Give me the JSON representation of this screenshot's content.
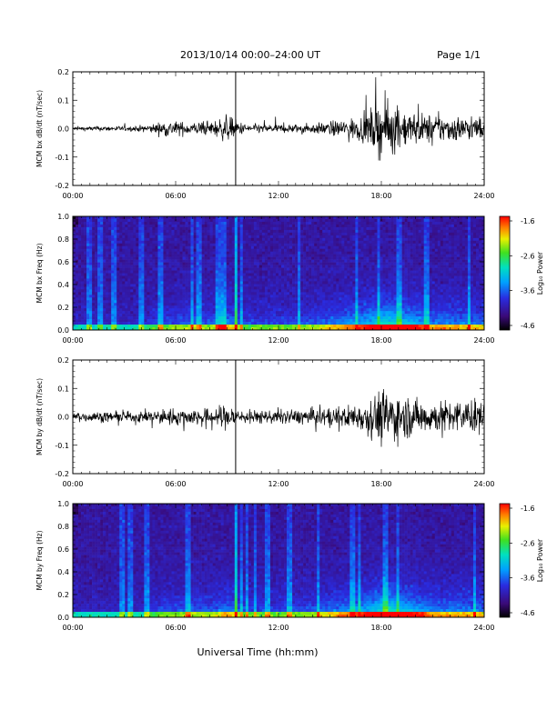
{
  "header": {
    "title": "2013/10/14  00:00–24:00 UT",
    "page": "Page 1/1"
  },
  "xlabel_common": "Universal Time (hh:mm)",
  "colorbar_ticks": [
    "-1.6",
    "-2.6",
    "-3.6",
    "-4.6"
  ],
  "colorbar_label": "Log₁₀ Power",
  "chart_data": [
    {
      "type": "line",
      "ylabel": "MCM bx dB/dt (nT/sec)",
      "xlim": [
        0,
        24
      ],
      "ylim": [
        -0.2,
        0.2
      ],
      "xticks": [
        "00:00",
        "06:00",
        "12:00",
        "18:00",
        "24:00"
      ],
      "yticks": [
        "0.2",
        "0.1",
        "0.0",
        "-0.1",
        "-0.2"
      ],
      "spike_hour": 9.5,
      "envelope": {
        "hour": [
          0,
          2,
          3.5,
          4.5,
          5.5,
          6.5,
          8,
          9,
          10,
          12,
          14,
          15.5,
          17,
          17.8,
          18.4,
          19,
          20.5,
          22,
          24
        ],
        "amplitude": [
          0.012,
          0.015,
          0.015,
          0.025,
          0.05,
          0.04,
          0.04,
          0.08,
          0.03,
          0.025,
          0.03,
          0.05,
          0.08,
          0.16,
          0.18,
          0.12,
          0.09,
          0.08,
          0.07
        ]
      }
    },
    {
      "type": "heatmap",
      "ylabel": "MCM bx Freq (Hz)",
      "xlim": [
        0,
        24
      ],
      "ylim": [
        0.0,
        1.0
      ],
      "zlim": [
        -4.6,
        -1.6
      ],
      "xticks": [
        "00:00",
        "06:00",
        "12:00",
        "18:00",
        "24:00"
      ],
      "yticks": [
        "1.0",
        "0.8",
        "0.6",
        "0.4",
        "0.2",
        "0.0"
      ]
    },
    {
      "type": "line",
      "ylabel": "MCM by dB/dt (nT/sec)",
      "xlim": [
        0,
        24
      ],
      "ylim": [
        -0.2,
        0.2
      ],
      "xticks": [
        "00:00",
        "06:00",
        "12:00",
        "18:00",
        "24:00"
      ],
      "yticks": [
        "0.2",
        "0.1",
        "0.0",
        "-0.1",
        "-0.2"
      ],
      "spike_hour": 9.5,
      "envelope": {
        "hour": [
          0,
          2,
          3.5,
          4.5,
          5.5,
          6.5,
          8,
          9,
          10,
          12,
          14,
          15.5,
          17,
          17.8,
          18.4,
          19,
          20.5,
          22,
          24
        ],
        "amplitude": [
          0.03,
          0.03,
          0.03,
          0.04,
          0.05,
          0.05,
          0.05,
          0.08,
          0.04,
          0.04,
          0.05,
          0.06,
          0.09,
          0.16,
          0.18,
          0.14,
          0.1,
          0.1,
          0.1
        ]
      }
    },
    {
      "type": "heatmap",
      "ylabel": "MCM by Freq (Hz)",
      "xlim": [
        0,
        24
      ],
      "ylim": [
        0.0,
        1.0
      ],
      "zlim": [
        -4.6,
        -1.6
      ],
      "xticks": [
        "00:00",
        "06:00",
        "12:00",
        "18:00",
        "24:00"
      ],
      "yticks": [
        "1.0",
        "0.8",
        "0.6",
        "0.4",
        "0.2",
        "0.0"
      ]
    }
  ]
}
